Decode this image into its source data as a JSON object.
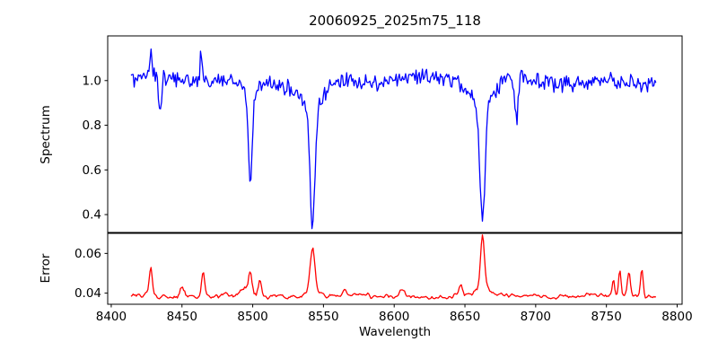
{
  "title": "20060925_2025m75_118",
  "colors": {
    "spectrum_line": "#0000ff",
    "error_line": "#ff0000",
    "axis": "#000000",
    "background": "#ffffff"
  },
  "chart_data": {
    "type": "line",
    "xlabel": "Wavelength",
    "xlim": [
      8397.5,
      8803.5
    ],
    "xticks": [
      "8400",
      "8450",
      "8500",
      "8550",
      "8600",
      "8650",
      "8700",
      "8750",
      "8800"
    ],
    "x_range": [
      8414,
      8785
    ],
    "n_points": 500,
    "grid": false,
    "legend": "none",
    "panels": [
      {
        "name": "spectrum",
        "ylabel": "Spectrum",
        "color": "#0000ff",
        "ylim": [
          0.32,
          1.2
        ],
        "yticks": [
          "0.4",
          "0.6",
          "0.8",
          "1.0"
        ],
        "continuum": 1.0,
        "noise": 0.045,
        "absorption_lines": [
          {
            "center": 8434.5,
            "depth": 0.17,
            "sigma": 1.0
          },
          {
            "center": 8498.3,
            "depth": 0.4,
            "sigma": 1.4,
            "wing_depth": 0.05,
            "wing_sigma": 5
          },
          {
            "center": 8542.3,
            "depth": 0.52,
            "sigma": 1.8,
            "wing_depth": 0.11,
            "wing_sigma": 8
          },
          {
            "center": 8662.4,
            "depth": 0.52,
            "sigma": 1.7,
            "wing_depth": 0.11,
            "wing_sigma": 8
          },
          {
            "center": 8686.5,
            "depth": 0.2,
            "sigma": 1.1
          }
        ],
        "emission_spikes": [
          {
            "center": 8428.0,
            "height": 0.12,
            "sigma": 0.7
          },
          {
            "center": 8463.5,
            "height": 0.14,
            "sigma": 0.7
          }
        ]
      },
      {
        "name": "error",
        "ylabel": "Error",
        "color": "#ff0000",
        "ylim": [
          0.0344,
          0.0701
        ],
        "yticks": [
          "0.04",
          "0.06"
        ],
        "baseline": 0.0385,
        "noise": 0.0025,
        "peaks": [
          {
            "center": 8428.0,
            "height": 0.0145,
            "sigma": 1.1
          },
          {
            "center": 8450.0,
            "height": 0.005,
            "sigma": 1.4
          },
          {
            "center": 8465.0,
            "height": 0.0125,
            "sigma": 1.1
          },
          {
            "center": 8494.0,
            "height": 0.0045,
            "sigma": 2.2
          },
          {
            "center": 8498.3,
            "height": 0.011,
            "sigma": 1.1
          },
          {
            "center": 8505.0,
            "height": 0.008,
            "sigma": 1.1
          },
          {
            "center": 8542.3,
            "height": 0.022,
            "sigma": 1.6,
            "wing_height": 0.003,
            "wing_sigma": 6
          },
          {
            "center": 8565.0,
            "height": 0.003,
            "sigma": 1.3
          },
          {
            "center": 8605.0,
            "height": 0.0035,
            "sigma": 1.5
          },
          {
            "center": 8647.0,
            "height": 0.005,
            "sigma": 1.3
          },
          {
            "center": 8662.4,
            "height": 0.027,
            "sigma": 1.4,
            "wing_height": 0.003,
            "wing_sigma": 6
          },
          {
            "center": 8755.0,
            "height": 0.009,
            "sigma": 0.8
          },
          {
            "center": 8759.5,
            "height": 0.013,
            "sigma": 0.8
          },
          {
            "center": 8766.0,
            "height": 0.012,
            "sigma": 1.0
          },
          {
            "center": 8775.0,
            "height": 0.013,
            "sigma": 0.9
          }
        ]
      }
    ]
  }
}
